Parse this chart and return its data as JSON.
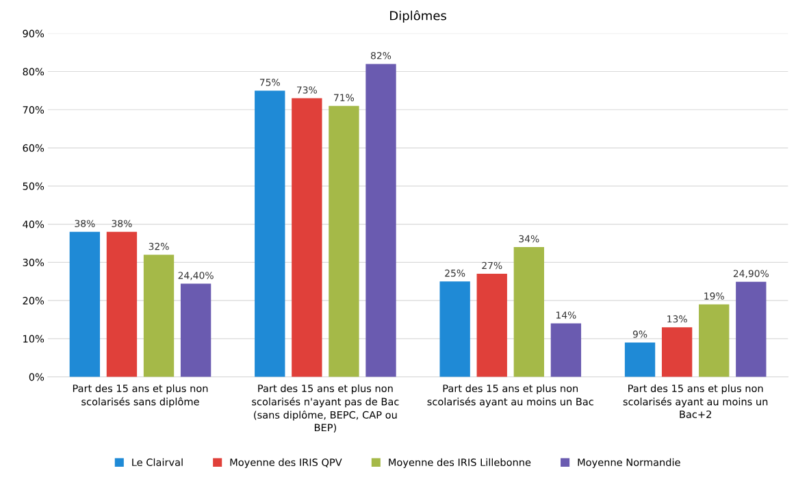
{
  "chart_data": {
    "type": "bar",
    "title": "Diplômes",
    "categories": [
      "Part des 15 ans et plus non scolarisés sans diplôme",
      "Part des 15 ans et plus non scolarisés n'ayant pas de Bac (sans diplôme, BEPC, CAP ou BEP)",
      "Part des 15 ans et plus non scolarisés ayant au moins un Bac",
      "Part des 15 ans et plus non scolarisés ayant au moins un Bac+2"
    ],
    "series": [
      {
        "name": "Le Clairval",
        "color": "#1f8ad6",
        "values": [
          38,
          75,
          25,
          9
        ],
        "value_labels": [
          "38%",
          "75%",
          "25%",
          "9%"
        ]
      },
      {
        "name": "Moyenne des IRIS QPV",
        "color": "#e0403a",
        "values": [
          38,
          73,
          27,
          13
        ],
        "value_labels": [
          "38%",
          "73%",
          "27%",
          "13%"
        ]
      },
      {
        "name": "Moyenne des IRIS Lillebonne",
        "color": "#a5b948",
        "values": [
          32,
          71,
          34,
          19
        ],
        "value_labels": [
          "32%",
          "71%",
          "34%",
          "19%"
        ]
      },
      {
        "name": "Moyenne Normandie",
        "color": "#6a5bb0",
        "values": [
          24.4,
          82,
          14,
          24.9
        ],
        "value_labels": [
          "24,40%",
          "82%",
          "14%",
          "24,90%"
        ]
      }
    ],
    "ylim": [
      0,
      90
    ],
    "yticks": [
      {
        "value": 0,
        "label": "0%"
      },
      {
        "value": 10,
        "label": "10%"
      },
      {
        "value": 20,
        "label": "20%"
      },
      {
        "value": 30,
        "label": "30%"
      },
      {
        "value": 40,
        "label": "40%"
      },
      {
        "value": 50,
        "label": "50%"
      },
      {
        "value": 60,
        "label": "60%"
      },
      {
        "value": 70,
        "label": "70%"
      },
      {
        "value": 80,
        "label": "80%"
      },
      {
        "value": 90,
        "label": "90%"
      }
    ],
    "grid": "y",
    "legend": "bottom"
  }
}
